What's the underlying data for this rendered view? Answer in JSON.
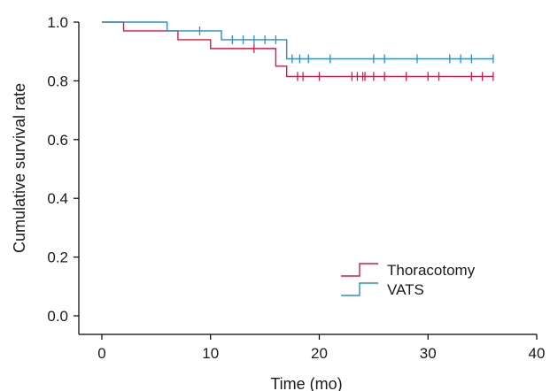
{
  "chart_data": {
    "type": "line",
    "subtype": "kaplan-meier",
    "title": "",
    "xlabel": "Time (mo)",
    "ylabel": "Cumulative survival rate",
    "xlim": [
      0,
      40
    ],
    "ylim": [
      0,
      1.0
    ],
    "xticks": [
      0,
      10,
      20,
      30,
      40
    ],
    "yticks": [
      "0.0",
      "0.2",
      "0.4",
      "0.6",
      "0.8",
      "1.0"
    ],
    "grid": false,
    "legend_position": "bottom-right",
    "series": [
      {
        "name": "Thoracotomy",
        "color": "#d01c44",
        "steps": [
          [
            0,
            1.0
          ],
          [
            2,
            0.97
          ],
          [
            7,
            0.94
          ],
          [
            10,
            0.91
          ],
          [
            16,
            0.85
          ],
          [
            17,
            0.815
          ]
        ],
        "end_x": 36,
        "censored": [
          [
            14,
            0.91
          ],
          [
            18,
            0.815
          ],
          [
            18.5,
            0.815
          ],
          [
            20,
            0.815
          ],
          [
            23,
            0.815
          ],
          [
            23.5,
            0.815
          ],
          [
            24,
            0.815
          ],
          [
            24.2,
            0.815
          ],
          [
            25,
            0.815
          ],
          [
            26,
            0.815
          ],
          [
            28,
            0.815
          ],
          [
            30,
            0.815
          ],
          [
            31,
            0.815
          ],
          [
            34,
            0.815
          ],
          [
            35,
            0.815
          ],
          [
            36,
            0.815
          ]
        ]
      },
      {
        "name": "VATS",
        "color": "#2a8fcc",
        "steps": [
          [
            0,
            1.0
          ],
          [
            6,
            0.97
          ],
          [
            11,
            0.94
          ],
          [
            17,
            0.875
          ]
        ],
        "end_x": 36,
        "censored": [
          [
            9,
            0.97
          ],
          [
            12,
            0.94
          ],
          [
            13,
            0.94
          ],
          [
            14,
            0.94
          ],
          [
            15,
            0.94
          ],
          [
            16,
            0.94
          ],
          [
            17.5,
            0.875
          ],
          [
            18.2,
            0.875
          ],
          [
            19,
            0.875
          ],
          [
            21,
            0.875
          ],
          [
            25,
            0.875
          ],
          [
            26,
            0.875
          ],
          [
            29,
            0.875
          ],
          [
            32,
            0.875
          ],
          [
            33,
            0.875
          ],
          [
            34,
            0.875
          ],
          [
            36,
            0.875
          ]
        ]
      }
    ]
  }
}
